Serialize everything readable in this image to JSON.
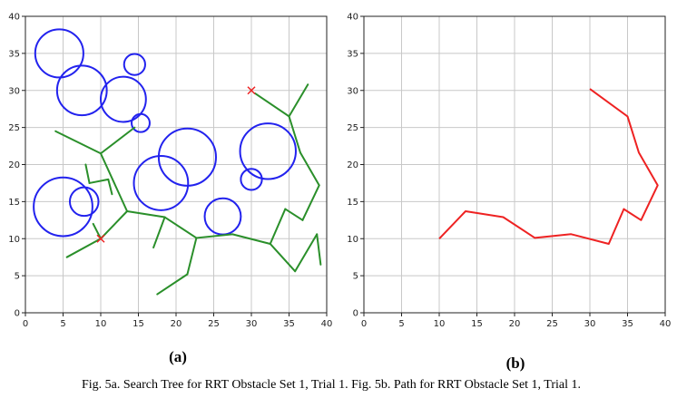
{
  "chart_data": [
    {
      "type": "line",
      "panel_label": "(a)",
      "xlim": [
        0,
        40
      ],
      "ylim": [
        0,
        40
      ],
      "xticks": [
        0,
        5,
        10,
        15,
        20,
        25,
        30,
        35,
        40
      ],
      "yticks": [
        0,
        5,
        10,
        15,
        20,
        25,
        30,
        35,
        40
      ],
      "grid": true,
      "obstacles": [
        {
          "cx": 4.5,
          "cy": 35,
          "r": 3.2
        },
        {
          "cx": 7.5,
          "cy": 30,
          "r": 3.3
        },
        {
          "cx": 14.5,
          "cy": 33.5,
          "r": 1.4
        },
        {
          "cx": 13,
          "cy": 28.8,
          "r": 3.0
        },
        {
          "cx": 15.3,
          "cy": 25.6,
          "r": 1.2
        },
        {
          "cx": 21.5,
          "cy": 21,
          "r": 3.8
        },
        {
          "cx": 32.2,
          "cy": 21.8,
          "r": 3.7
        },
        {
          "cx": 18,
          "cy": 17.5,
          "r": 3.6
        },
        {
          "cx": 30,
          "cy": 18,
          "r": 1.4
        },
        {
          "cx": 5,
          "cy": 14.3,
          "r": 3.9
        },
        {
          "cx": 7.8,
          "cy": 15,
          "r": 1.9
        },
        {
          "cx": 26.2,
          "cy": 13,
          "r": 2.4
        }
      ],
      "start_marker": {
        "x": 10,
        "y": 10
      },
      "goal_marker": {
        "x": 30,
        "y": 30
      },
      "tree_edges": [
        [
          [
            10,
            10
          ],
          [
            13.5,
            13.7
          ]
        ],
        [
          [
            13.5,
            13.7
          ],
          [
            18.5,
            12.9
          ]
        ],
        [
          [
            18.5,
            12.9
          ],
          [
            22.7,
            10.1
          ]
        ],
        [
          [
            22.7,
            10.1
          ],
          [
            27.5,
            10.6
          ]
        ],
        [
          [
            27.5,
            10.6
          ],
          [
            32.5,
            9.3
          ]
        ],
        [
          [
            32.5,
            9.3
          ],
          [
            34.5,
            14
          ]
        ],
        [
          [
            34.5,
            14
          ],
          [
            36.8,
            12.5
          ]
        ],
        [
          [
            36.8,
            12.5
          ],
          [
            39,
            17.2
          ]
        ],
        [
          [
            39,
            17.2
          ],
          [
            36.5,
            21.6
          ]
        ],
        [
          [
            36.5,
            21.6
          ],
          [
            35,
            26.5
          ]
        ],
        [
          [
            35,
            26.5
          ],
          [
            30.5,
            29.6
          ]
        ],
        [
          [
            35,
            26.5
          ],
          [
            37.5,
            30.8
          ]
        ],
        [
          [
            10,
            10
          ],
          [
            5.5,
            7.5
          ]
        ],
        [
          [
            10,
            10
          ],
          [
            9,
            12
          ]
        ],
        [
          [
            13.5,
            13.7
          ],
          [
            10,
            21.5
          ]
        ],
        [
          [
            10,
            21.5
          ],
          [
            4,
            24.5
          ]
        ],
        [
          [
            10,
            21.5
          ],
          [
            14.5,
            25
          ]
        ],
        [
          [
            11,
            18
          ],
          [
            8.5,
            17.5
          ]
        ],
        [
          [
            11,
            18
          ],
          [
            11.5,
            16
          ]
        ],
        [
          [
            8.5,
            17.5
          ],
          [
            8,
            20
          ]
        ],
        [
          [
            18.5,
            12.9
          ],
          [
            17,
            8.8
          ]
        ],
        [
          [
            22.7,
            10.1
          ],
          [
            21.5,
            5.2
          ]
        ],
        [
          [
            21.5,
            5.2
          ],
          [
            17.5,
            2.5
          ]
        ],
        [
          [
            32.5,
            9.3
          ],
          [
            35.8,
            5.6
          ]
        ],
        [
          [
            35.8,
            5.6
          ],
          [
            38.7,
            10.6
          ]
        ],
        [
          [
            38.7,
            10.6
          ],
          [
            39.2,
            6.5
          ]
        ]
      ]
    },
    {
      "type": "line",
      "panel_label": "(b)",
      "xlim": [
        0,
        40
      ],
      "ylim": [
        0,
        40
      ],
      "xticks": [
        0,
        5,
        10,
        15,
        20,
        25,
        30,
        35,
        40
      ],
      "yticks": [
        0,
        5,
        10,
        15,
        20,
        25,
        30,
        35,
        40
      ],
      "grid": true,
      "series": [
        {
          "x": [
            10,
            13.5,
            18.5,
            22.7,
            27.5,
            32.5,
            34.5,
            36.8,
            39,
            36.5,
            35,
            30
          ],
          "y": [
            10,
            13.7,
            12.9,
            10.1,
            10.6,
            9.3,
            14,
            12.5,
            17.2,
            21.6,
            26.5,
            30.2
          ]
        }
      ]
    }
  ],
  "caption": "Fig. 5a. Search Tree for RRT Obstacle Set 1, Trial 1. Fig. 5b. Path for RRT Obstacle Set 1, Trial 1.",
  "colors": {
    "obstacle": "#2222ee",
    "tree": "#2a8f2a",
    "path": "#ee2222",
    "marker": "#ee2222"
  }
}
